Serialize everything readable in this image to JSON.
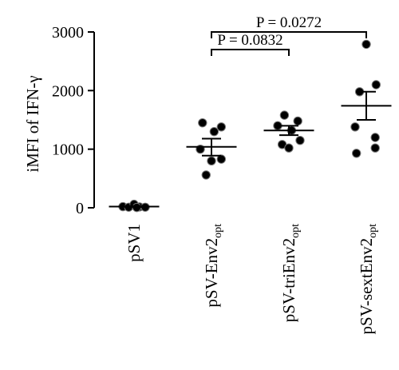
{
  "chart_data": {
    "type": "scatter",
    "ylabel": "iMFI of IFN-γ",
    "ylim": [
      0,
      3000
    ],
    "yticks": [
      0,
      1000,
      2000,
      3000
    ],
    "ytick_labels": [
      "0",
      "1000",
      "2000",
      "3000"
    ],
    "categories": [
      {
        "main": "pSV1",
        "sub": ""
      },
      {
        "main": "pSV-Env2",
        "sub": "opt"
      },
      {
        "main": "pSV-triEnv2",
        "sub": "opt"
      },
      {
        "main": "pSV-sextEnv2",
        "sub": "opt"
      }
    ],
    "groups": [
      {
        "points": [
          {
            "y": 20,
            "offset": -0.25
          },
          {
            "y": 10,
            "offset": -0.12
          },
          {
            "y": 60,
            "offset": 0.0
          },
          {
            "y": 15,
            "offset": 0.12
          },
          {
            "y": 10,
            "offset": 0.25
          },
          {
            "y": 5,
            "offset": 0.06
          }
        ],
        "mean": 20,
        "sem_low": 10,
        "sem_high": 30
      },
      {
        "points": [
          {
            "y": 1450,
            "offset": -0.2
          },
          {
            "y": 1380,
            "offset": 0.22
          },
          {
            "y": 1300,
            "offset": 0.06
          },
          {
            "y": 1000,
            "offset": -0.25
          },
          {
            "y": 830,
            "offset": 0.22
          },
          {
            "y": 800,
            "offset": 0.0
          },
          {
            "y": 560,
            "offset": -0.12
          }
        ],
        "mean": 1040,
        "sem_low": 890,
        "sem_high": 1180
      },
      {
        "points": [
          {
            "y": 1580,
            "offset": -0.1
          },
          {
            "y": 1480,
            "offset": 0.2
          },
          {
            "y": 1400,
            "offset": -0.25
          },
          {
            "y": 1320,
            "offset": 0.06
          },
          {
            "y": 1150,
            "offset": 0.25
          },
          {
            "y": 1080,
            "offset": -0.15
          },
          {
            "y": 1020,
            "offset": 0.0
          }
        ],
        "mean": 1320,
        "sem_low": 1240,
        "sem_high": 1400
      },
      {
        "points": [
          {
            "y": 2790,
            "offset": 0.0
          },
          {
            "y": 2100,
            "offset": 0.22
          },
          {
            "y": 1980,
            "offset": -0.15
          },
          {
            "y": 1380,
            "offset": -0.25
          },
          {
            "y": 1200,
            "offset": 0.2
          },
          {
            "y": 1020,
            "offset": 0.2
          },
          {
            "y": 930,
            "offset": -0.22
          }
        ],
        "mean": 1740,
        "sem_low": 1500,
        "sem_high": 1980
      }
    ],
    "comparisons": [
      {
        "from": 1,
        "to": 2,
        "y": 2700,
        "label": "P = 0.0832"
      },
      {
        "from": 1,
        "to": 3,
        "y": 3000,
        "label": "P = 0.0272"
      }
    ]
  }
}
